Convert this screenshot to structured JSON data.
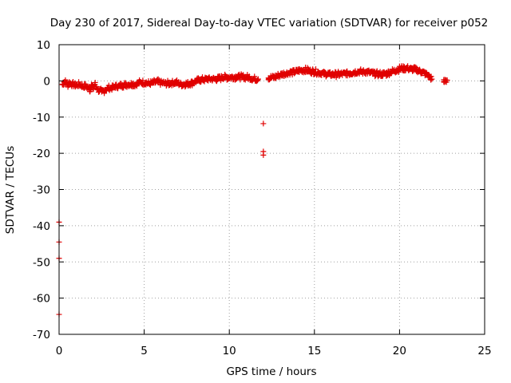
{
  "chart_data": {
    "type": "scatter",
    "title": "Day 230 of 2017, Sidereal Day-to-day VTEC variation (SDTVAR) for receiver p052",
    "xlabel": "GPS time / hours",
    "ylabel": "SDTVAR / TECUs",
    "xlim": [
      0,
      25
    ],
    "ylim": [
      -70,
      10
    ],
    "xticks": [
      0,
      5,
      10,
      15,
      20,
      25
    ],
    "yticks": [
      10,
      0,
      -10,
      -20,
      -30,
      -40,
      -50,
      -60,
      -70
    ],
    "grid": true,
    "marker": "+",
    "series": [
      {
        "name": "SDTVAR",
        "color": "#e00000",
        "points": [
          [
            0.0,
            -39.0
          ],
          [
            0.0,
            -44.5
          ],
          [
            0.0,
            -49.0
          ],
          [
            0.0,
            -64.5
          ],
          [
            0.2,
            -1.0
          ],
          [
            0.3,
            -0.3
          ],
          [
            0.4,
            -0.5
          ],
          [
            0.5,
            -1.0
          ],
          [
            0.6,
            -0.5
          ],
          [
            0.8,
            -1.0
          ],
          [
            1.0,
            -1.2
          ],
          [
            1.2,
            -1.0
          ],
          [
            1.4,
            -1.5
          ],
          [
            1.6,
            -1.5
          ],
          [
            1.8,
            -2.5
          ],
          [
            1.9,
            -1.0
          ],
          [
            2.0,
            -2.0
          ],
          [
            2.1,
            -1.0
          ],
          [
            2.3,
            -2.5
          ],
          [
            2.5,
            -3.0
          ],
          [
            2.7,
            -2.5
          ],
          [
            2.9,
            -2.0
          ],
          [
            3.1,
            -2.0
          ],
          [
            3.3,
            -1.5
          ],
          [
            3.5,
            -1.5
          ],
          [
            3.7,
            -1.2
          ],
          [
            3.9,
            -1.0
          ],
          [
            4.1,
            -1.0
          ],
          [
            4.3,
            -0.8
          ],
          [
            4.5,
            -1.0
          ],
          [
            4.7,
            -0.5
          ],
          [
            4.9,
            -0.5
          ],
          [
            5.1,
            -0.5
          ],
          [
            5.3,
            -0.8
          ],
          [
            5.5,
            -0.5
          ],
          [
            5.8,
            -0.3
          ],
          [
            6.0,
            -0.5
          ],
          [
            6.3,
            -0.8
          ],
          [
            6.6,
            -0.5
          ],
          [
            6.9,
            -0.5
          ],
          [
            7.2,
            -1.0
          ],
          [
            7.5,
            -0.8
          ],
          [
            7.8,
            -0.5
          ],
          [
            8.1,
            0.0
          ],
          [
            8.4,
            0.3
          ],
          [
            8.7,
            0.5
          ],
          [
            9.0,
            0.5
          ],
          [
            9.3,
            0.5
          ],
          [
            9.6,
            1.0
          ],
          [
            9.9,
            1.0
          ],
          [
            10.2,
            1.0
          ],
          [
            10.5,
            1.2
          ],
          [
            10.8,
            1.0
          ],
          [
            11.1,
            1.0
          ],
          [
            11.4,
            0.5
          ],
          [
            11.7,
            0.5
          ],
          [
            12.0,
            -11.8
          ],
          [
            12.0,
            -19.5
          ],
          [
            12.0,
            -20.5
          ],
          [
            12.3,
            0.8
          ],
          [
            12.6,
            1.0
          ],
          [
            12.9,
            1.5
          ],
          [
            13.2,
            2.0
          ],
          [
            13.5,
            2.2
          ],
          [
            13.8,
            2.5
          ],
          [
            14.1,
            2.8
          ],
          [
            14.4,
            3.0
          ],
          [
            14.7,
            2.8
          ],
          [
            15.0,
            2.5
          ],
          [
            15.3,
            2.2
          ],
          [
            15.6,
            2.0
          ],
          [
            15.9,
            1.8
          ],
          [
            16.2,
            1.8
          ],
          [
            16.5,
            1.8
          ],
          [
            16.8,
            2.0
          ],
          [
            17.1,
            2.2
          ],
          [
            17.4,
            2.5
          ],
          [
            17.7,
            2.5
          ],
          [
            18.0,
            2.5
          ],
          [
            18.3,
            2.2
          ],
          [
            18.6,
            2.0
          ],
          [
            18.9,
            1.8
          ],
          [
            19.2,
            2.0
          ],
          [
            19.5,
            2.5
          ],
          [
            19.8,
            3.0
          ],
          [
            20.1,
            3.5
          ],
          [
            20.4,
            3.5
          ],
          [
            20.7,
            3.2
          ],
          [
            21.0,
            3.0
          ],
          [
            21.3,
            2.5
          ],
          [
            21.6,
            1.8
          ],
          [
            21.9,
            0.5
          ],
          [
            22.6,
            -0.2
          ],
          [
            22.8,
            0.2
          ]
        ]
      }
    ]
  }
}
